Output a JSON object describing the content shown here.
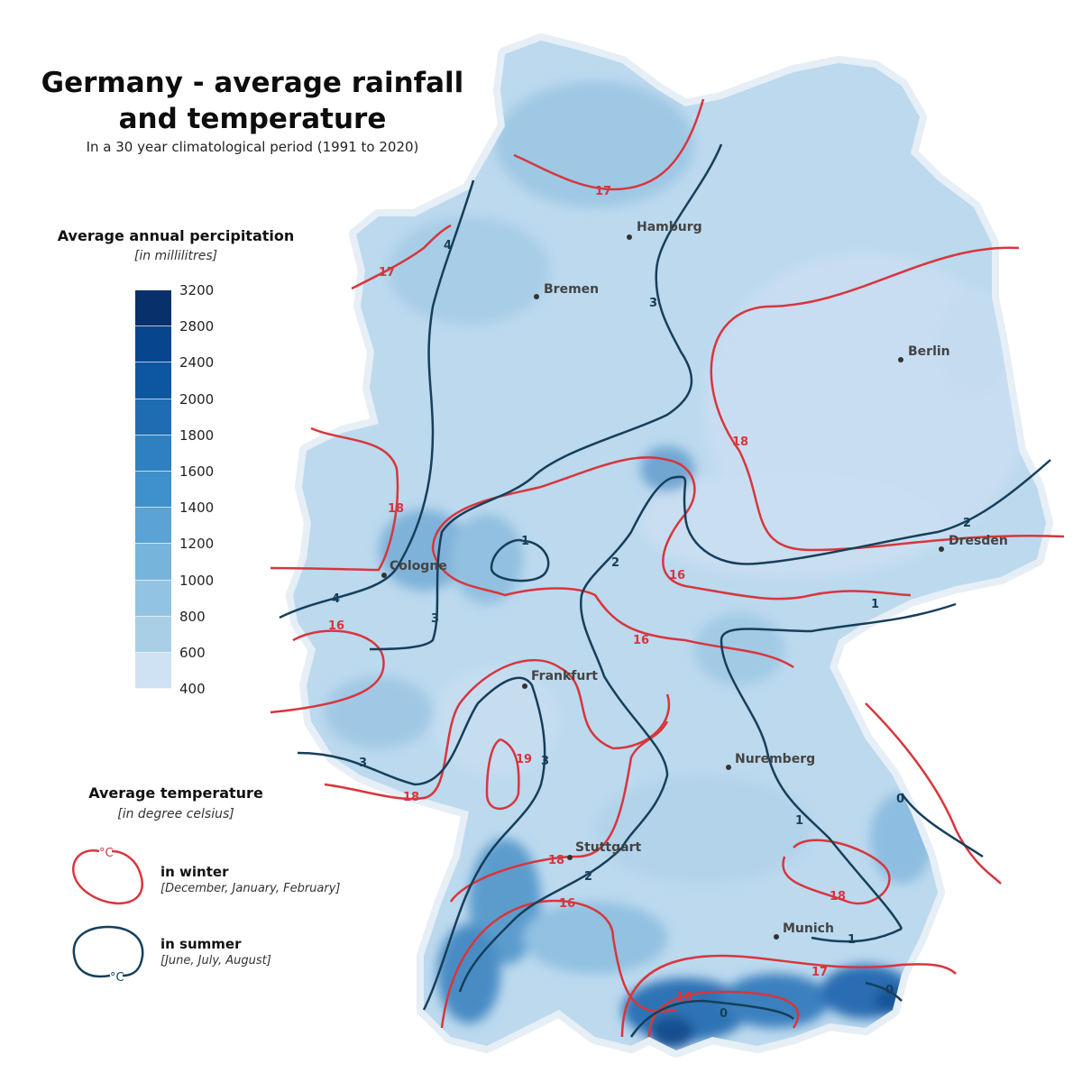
{
  "title": "Germany - average rainfall and temperature",
  "subtitle": "In a 30 year climatological period (1991 to 2020)",
  "precip_legend": {
    "heading": "Average annual percipitation",
    "unit": "[in millilitres]",
    "ticks": [
      "3200",
      "2800",
      "2400",
      "2000",
      "1800",
      "1600",
      "1400",
      "1200",
      "1000",
      "800",
      "600",
      "400"
    ],
    "colors": [
      "#08306b",
      "#08458f",
      "#0d57a1",
      "#1f6cb3",
      "#2f80c0",
      "#3f91cb",
      "#5aa3d4",
      "#77b4dc",
      "#92c3e2",
      "#a9cfe7",
      "#bcd9ee",
      "#cfe2f3"
    ]
  },
  "temp_legend": {
    "heading": "Average temperature",
    "unit": "[in degree celsius]",
    "winter": {
      "label": "in winter",
      "months": "[December, January, February]",
      "color": "#d7363d",
      "symbol": "°C"
    },
    "summer": {
      "label": "in summer",
      "months": "[June, July, August]",
      "color": "#163f5a",
      "symbol": "°C"
    }
  },
  "cities": [
    {
      "name": "Hamburg"
    },
    {
      "name": "Bremen"
    },
    {
      "name": "Berlin"
    },
    {
      "name": "Dresden"
    },
    {
      "name": "Cologne"
    },
    {
      "name": "Frankfurt"
    },
    {
      "name": "Nuremberg"
    },
    {
      "name": "Stuttgart"
    },
    {
      "name": "Munich"
    }
  ],
  "winter_isotherm_labels": [
    "17",
    "17",
    "18",
    "18",
    "16",
    "16",
    "16",
    "18",
    "19",
    "18",
    "16",
    "18",
    "17",
    "16"
  ],
  "summer_isotherm_labels": [
    "4",
    "4",
    "3",
    "3",
    "1",
    "2",
    "2",
    "1",
    "3",
    "3",
    "2",
    "0",
    "1",
    "1",
    "0",
    "0"
  ]
}
